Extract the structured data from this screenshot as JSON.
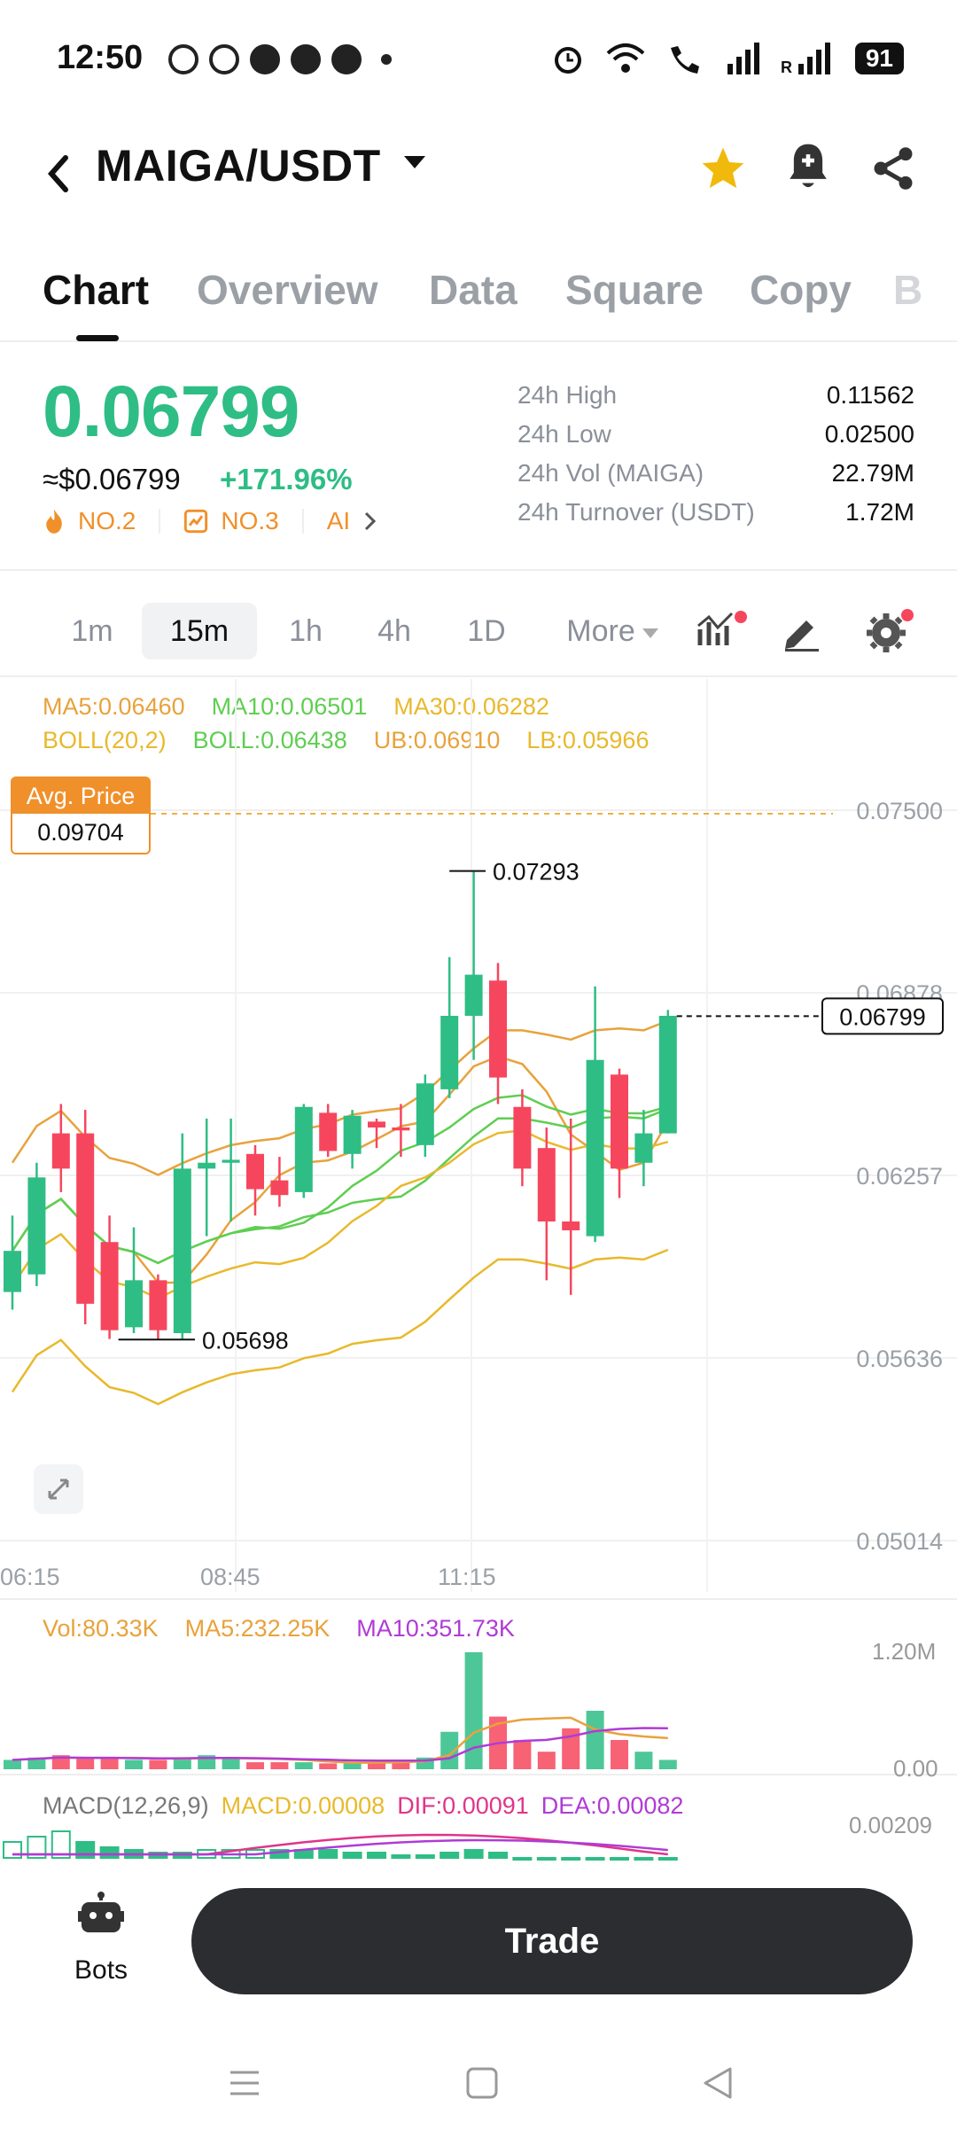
{
  "status": {
    "time": "12:50",
    "battery": "91"
  },
  "header": {
    "pair": "MAIGA/USDT"
  },
  "tabs": [
    "Chart",
    "Overview",
    "Data",
    "Square",
    "Copy",
    "B"
  ],
  "price": {
    "last": "0.06799",
    "usd": "≈$0.06799",
    "change": "+171.96%",
    "rank1": "NO.2",
    "rank2": "NO.3",
    "rank3": "AI"
  },
  "stats": [
    {
      "label": "24h High",
      "value": "0.11562"
    },
    {
      "label": "24h Low",
      "value": "0.02500"
    },
    {
      "label": "24h Vol (MAIGA)",
      "value": "22.79M"
    },
    {
      "label": "24h Turnover (USDT)",
      "value": "1.72M"
    }
  ],
  "intervals": [
    "1m",
    "15m",
    "1h",
    "4h",
    "1D",
    "More"
  ],
  "indicators": {
    "ma5": "MA5:0.06460",
    "ma10": "MA10:0.06501",
    "ma30": "MA30:0.06282",
    "boll": "BOLL(20,2)",
    "boll_mid": "BOLL:0.06438",
    "ub": "UB:0.06910",
    "lb": "LB:0.05966"
  },
  "chart_data": {
    "type": "candlestick",
    "avg_price_label": "Avg. Price",
    "avg_price": "0.09704",
    "current_price_tag": "0.06799",
    "high_marker": "0.07293",
    "low_marker": "0.05698",
    "y_ticks": [
      "0.07500",
      "0.06878",
      "0.06257",
      "0.05636",
      "0.05014"
    ],
    "x_ticks": [
      "06:15",
      "08:45",
      "11:15"
    ],
    "candles": [
      {
        "o": 0.0586,
        "h": 0.0612,
        "l": 0.058,
        "c": 0.06
      },
      {
        "o": 0.0592,
        "h": 0.063,
        "l": 0.0588,
        "c": 0.0625
      },
      {
        "o": 0.064,
        "h": 0.065,
        "l": 0.062,
        "c": 0.0628
      },
      {
        "o": 0.064,
        "h": 0.0648,
        "l": 0.0575,
        "c": 0.0582
      },
      {
        "o": 0.0603,
        "h": 0.0612,
        "l": 0.057,
        "c": 0.0573
      },
      {
        "o": 0.0574,
        "h": 0.0608,
        "l": 0.0572,
        "c": 0.059
      },
      {
        "o": 0.059,
        "h": 0.0592,
        "l": 0.057,
        "c": 0.0573
      },
      {
        "o": 0.0572,
        "h": 0.064,
        "l": 0.057,
        "c": 0.0628
      },
      {
        "o": 0.0628,
        "h": 0.0645,
        "l": 0.0605,
        "c": 0.063
      },
      {
        "o": 0.063,
        "h": 0.0645,
        "l": 0.061,
        "c": 0.0631
      },
      {
        "o": 0.0633,
        "h": 0.0636,
        "l": 0.0612,
        "c": 0.0621
      },
      {
        "o": 0.0624,
        "h": 0.0632,
        "l": 0.0615,
        "c": 0.0619
      },
      {
        "o": 0.062,
        "h": 0.065,
        "l": 0.0618,
        "c": 0.0649
      },
      {
        "o": 0.0647,
        "h": 0.065,
        "l": 0.0632,
        "c": 0.0634
      },
      {
        "o": 0.0633,
        "h": 0.0648,
        "l": 0.0628,
        "c": 0.0646
      },
      {
        "o": 0.0644,
        "h": 0.0645,
        "l": 0.0635,
        "c": 0.0642
      },
      {
        "o": 0.0642,
        "h": 0.065,
        "l": 0.0632,
        "c": 0.0641
      },
      {
        "o": 0.0636,
        "h": 0.066,
        "l": 0.0632,
        "c": 0.0657
      },
      {
        "o": 0.0655,
        "h": 0.07,
        "l": 0.0652,
        "c": 0.068
      },
      {
        "o": 0.068,
        "h": 0.0729,
        "l": 0.0665,
        "c": 0.0694
      },
      {
        "o": 0.0692,
        "h": 0.0698,
        "l": 0.065,
        "c": 0.0659
      },
      {
        "o": 0.0649,
        "h": 0.0655,
        "l": 0.0622,
        "c": 0.0628
      },
      {
        "o": 0.0635,
        "h": 0.0642,
        "l": 0.059,
        "c": 0.061
      },
      {
        "o": 0.061,
        "h": 0.0645,
        "l": 0.0585,
        "c": 0.0607
      },
      {
        "o": 0.0605,
        "h": 0.069,
        "l": 0.0603,
        "c": 0.0665
      },
      {
        "o": 0.066,
        "h": 0.0662,
        "l": 0.0618,
        "c": 0.0628
      },
      {
        "o": 0.063,
        "h": 0.0648,
        "l": 0.0622,
        "c": 0.064
      },
      {
        "o": 0.064,
        "h": 0.0682,
        "l": 0.064,
        "c": 0.068
      }
    ],
    "volume": {
      "label": "Vol:80.33K",
      "ma5_label": "MA5:232.25K",
      "ma10_label": "MA10:351.73K",
      "y_ticks": [
        "1.20M",
        "0.00"
      ]
    },
    "macd": {
      "label": "MACD(12,26,9)",
      "macd_label": "MACD:0.00008",
      "dif_label": "DIF:0.00091",
      "dea_label": "DEA:0.00082",
      "y_tick": "0.00209"
    }
  },
  "bottom": {
    "bots_label": "Bots",
    "trade_label": "Trade"
  },
  "colors": {
    "up": "#2ebd85",
    "down": "#f6465d",
    "ma5": "#e8a23c",
    "ma10": "#5fce52",
    "ma30": "#e8b92c",
    "accent": "#f0b90b"
  }
}
